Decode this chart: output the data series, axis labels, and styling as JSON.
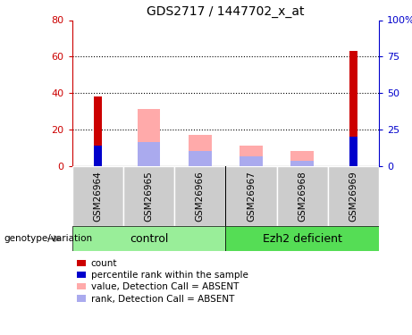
{
  "title": "GDS2717 / 1447702_x_at",
  "samples": [
    "GSM26964",
    "GSM26965",
    "GSM26966",
    "GSM26967",
    "GSM26968",
    "GSM26969"
  ],
  "count_values": [
    38,
    0,
    0,
    0,
    0,
    63
  ],
  "percentile_values": [
    14,
    0,
    0,
    0,
    0,
    20
  ],
  "absent_value_values": [
    0,
    31,
    17,
    11,
    8,
    0
  ],
  "absent_rank_values": [
    0,
    13,
    8,
    5,
    3,
    0
  ],
  "ylim_left": [
    0,
    80
  ],
  "ylim_right": [
    0,
    100
  ],
  "yticks_left": [
    0,
    20,
    40,
    60,
    80
  ],
  "yticks_right": [
    0,
    25,
    50,
    75,
    100
  ],
  "ytick_labels_left": [
    "0",
    "20",
    "40",
    "60",
    "80"
  ],
  "ytick_labels_right": [
    "0",
    "25",
    "50",
    "75",
    "100%"
  ],
  "color_count": "#cc0000",
  "color_percentile": "#0000cc",
  "color_absent_value": "#ffaaaa",
  "color_absent_rank": "#aaaaee",
  "color_group_bg_control": "#99ee99",
  "color_group_bg_ezh2": "#55dd55",
  "color_sample_bg": "#cccccc",
  "narrow_bar_width": 0.15,
  "wide_bar_width": 0.45,
  "group_divider": 2.5,
  "control_group_label": "control",
  "ezh2_group_label": "Ezh2 deficient",
  "genotype_label": "genotype/variation",
  "legend_items": [
    {
      "color": "#cc0000",
      "label": "count"
    },
    {
      "color": "#0000cc",
      "label": "percentile rank within the sample"
    },
    {
      "color": "#ffaaaa",
      "label": "value, Detection Call = ABSENT"
    },
    {
      "color": "#aaaaee",
      "label": "rank, Detection Call = ABSENT"
    }
  ]
}
